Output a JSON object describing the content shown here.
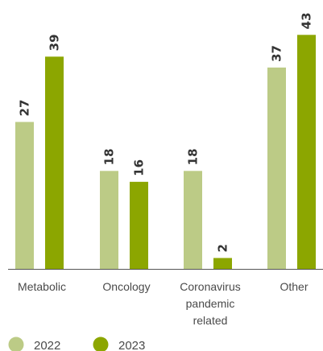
{
  "chart_data": {
    "type": "bar",
    "categories": [
      [
        "Metabolic"
      ],
      [
        "Oncology"
      ],
      [
        "Coronavirus",
        "pandemic",
        "related"
      ],
      [
        "Other"
      ]
    ],
    "series": [
      {
        "name": "2022",
        "values": [
          27,
          18,
          18,
          37
        ],
        "color": "#bccb86"
      },
      {
        "name": "2023",
        "values": [
          39,
          16,
          2,
          43
        ],
        "color": "#8ca600"
      }
    ],
    "ylim": [
      0,
      45
    ],
    "grid": false,
    "legend_position": "bottom-left",
    "axis_color": "#555555"
  }
}
